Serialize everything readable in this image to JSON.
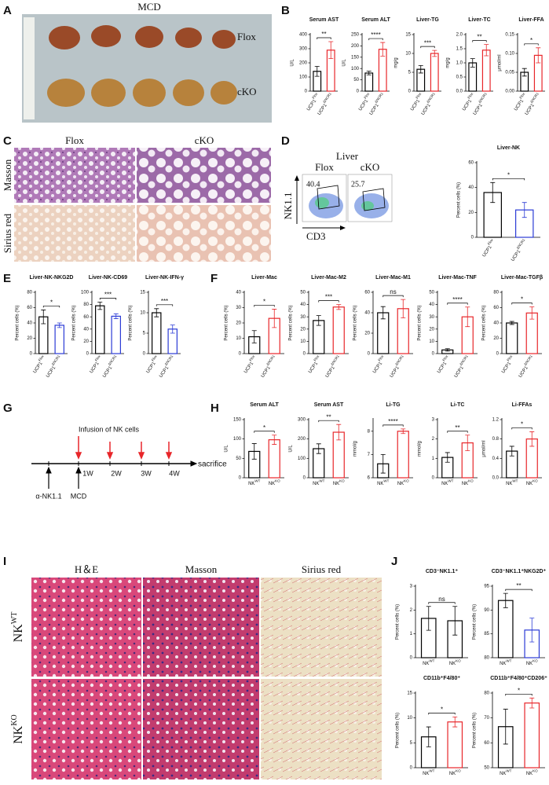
{
  "panel_letters": [
    "A",
    "B",
    "C",
    "D",
    "E",
    "F",
    "G",
    "H",
    "I",
    "J"
  ],
  "panel_A": {
    "title": "MCD",
    "rows": [
      "Flox",
      "cKO"
    ]
  },
  "panel_C": {
    "columns": [
      "Flox",
      "cKO"
    ],
    "rows": [
      "Masson",
      "Sirius red"
    ]
  },
  "panel_D": {
    "title": "Liver",
    "columns": [
      "Flox",
      "cKO"
    ],
    "gates": [
      40.4,
      25.7
    ],
    "y_axis": "NK1.1",
    "x_axis": "CD3"
  },
  "panel_G": {
    "infusion": "Infusion of NK cells",
    "weeks": [
      "1W",
      "2W",
      "3W",
      "4W"
    ],
    "end": "sacrifice",
    "antibody": "α-NK1.1",
    "diet": "MCD"
  },
  "panel_I": {
    "columns": [
      "H＆E",
      "Masson",
      "Sirius red"
    ],
    "rows": [
      {
        "base": "NK",
        "sup": "WT"
      },
      {
        "base": "NK",
        "sup": "KO"
      }
    ]
  },
  "chart_data": [
    {
      "type": "bar",
      "title": "Serum AST",
      "ylabel": "U/L",
      "categories": [
        "UCP1",
        "UCP1"
      ],
      "category_superscripts": [
        "Flox",
        "ΔNCR1"
      ],
      "values": [
        140,
        290
      ],
      "errors": [
        35,
        60
      ],
      "colors": [
        "#000000",
        "#e8262a"
      ],
      "ylim": [
        0,
        400
      ],
      "yticks": [
        0,
        100,
        200,
        300,
        400
      ],
      "significance": "**"
    },
    {
      "type": "bar",
      "title": "Serum ALT",
      "ylabel": "U/L",
      "categories": [
        "UCP1",
        "UCP1"
      ],
      "category_superscripts": [
        "Flox",
        "ΔNCR1"
      ],
      "values": [
        80,
        185
      ],
      "errors": [
        8,
        30
      ],
      "colors": [
        "#000000",
        "#e8262a"
      ],
      "ylim": [
        0,
        250
      ],
      "yticks": [
        0,
        50,
        100,
        150,
        200,
        250
      ],
      "significance": "****"
    },
    {
      "type": "bar",
      "title": "Liver-TG",
      "ylabel": "mg/g",
      "categories": [
        "UCP1",
        "UCP1"
      ],
      "category_superscripts": [
        "Flox",
        "ΔNCR1"
      ],
      "values": [
        5.8,
        10
      ],
      "errors": [
        1,
        0.8
      ],
      "colors": [
        "#000000",
        "#e8262a"
      ],
      "ylim": [
        0,
        15
      ],
      "yticks": [
        0,
        5,
        10,
        15
      ],
      "significance": "***"
    },
    {
      "type": "bar",
      "title": "Liver-TC",
      "ylabel": "mg/g",
      "categories": [
        "UCP1",
        "UCP1"
      ],
      "category_superscripts": [
        "Flox",
        "ΔNCR1"
      ],
      "values": [
        1.0,
        1.45
      ],
      "errors": [
        0.15,
        0.2
      ],
      "colors": [
        "#000000",
        "#e8262a"
      ],
      "ylim": [
        0,
        2
      ],
      "yticks": [
        {
          "value": 0,
          "label": "0.0"
        },
        0.5,
        {
          "value": 1,
          "label": "1.0"
        },
        1.5,
        {
          "value": 2,
          "label": "2.0"
        }
      ],
      "significance": "**"
    },
    {
      "type": "bar",
      "title": "Liver-FFA",
      "ylabel": "μmol/ml",
      "categories": [
        "UCP1",
        "UCP1"
      ],
      "category_superscripts": [
        "Flox",
        "ΔNCR1"
      ],
      "values": [
        0.05,
        0.095
      ],
      "errors": [
        0.01,
        0.02
      ],
      "colors": [
        "#000000",
        "#e8262a"
      ],
      "ylim": [
        0,
        0.15
      ],
      "yticks": [
        {
          "value": 0,
          "label": "0.00"
        },
        {
          "value": 0.05,
          "label": "0.05"
        },
        {
          "value": 0.1,
          "label": "0.10"
        },
        {
          "value": 0.15,
          "label": "0.15"
        }
      ],
      "significance": "*"
    },
    {
      "type": "bar",
      "title": "Liver-NK",
      "ylabel": "Percent cells (%)",
      "categories": [
        "UCP1",
        "UCP1"
      ],
      "category_superscripts": [
        "Flox",
        "ΔNCR1"
      ],
      "values": [
        36,
        22
      ],
      "errors": [
        8,
        6
      ],
      "colors": [
        "#000000",
        "#2b3bd6"
      ],
      "ylim": [
        0,
        60
      ],
      "yticks": [
        0,
        20,
        40,
        60
      ],
      "significance": "*"
    },
    {
      "type": "bar",
      "title": "Liver-NK-NKG2D",
      "ylabel": "Percent cells (%)",
      "categories": [
        "UCP1",
        "UCP1"
      ],
      "category_superscripts": [
        "Flox",
        "ΔNCR1"
      ],
      "values": [
        48,
        37
      ],
      "errors": [
        9,
        3
      ],
      "colors": [
        "#000000",
        "#2b3bd6"
      ],
      "ylim": [
        0,
        80
      ],
      "yticks": [
        0,
        20,
        40,
        60,
        80
      ],
      "significance": "*"
    },
    {
      "type": "bar",
      "title": "Liver-NK-CD69",
      "ylabel": "Percent cells (%)",
      "categories": [
        "UCP1",
        "UCP1"
      ],
      "category_superscripts": [
        "Flox",
        "ΔNCR1"
      ],
      "values": [
        78,
        61
      ],
      "errors": [
        6,
        4
      ],
      "colors": [
        "#000000",
        "#2b3bd6"
      ],
      "ylim": [
        0,
        100
      ],
      "yticks": [
        0,
        20,
        40,
        60,
        80,
        100
      ],
      "significance": "***"
    },
    {
      "type": "bar",
      "title": "Liver-NK-IFN-γ",
      "ylabel": "Percent cells (%)",
      "categories": [
        "UCP1",
        "UCP1"
      ],
      "category_superscripts": [
        "Flox",
        "ΔNCR1"
      ],
      "values": [
        10,
        6
      ],
      "errors": [
        1,
        1
      ],
      "colors": [
        "#000000",
        "#2b3bd6"
      ],
      "ylim": [
        0,
        15
      ],
      "yticks": [
        0,
        5,
        10,
        15
      ],
      "significance": "***"
    },
    {
      "type": "bar",
      "title": "Liver-Mac",
      "ylabel": "Percent cells (%)",
      "categories": [
        "UCP1",
        "UCP1"
      ],
      "category_superscripts": [
        "Flox",
        "ΔNCR1"
      ],
      "values": [
        11,
        23
      ],
      "errors": [
        4,
        6
      ],
      "colors": [
        "#000000",
        "#e8262a"
      ],
      "ylim": [
        0,
        40
      ],
      "yticks": [
        0,
        10,
        20,
        30,
        40
      ],
      "significance": "*"
    },
    {
      "type": "bar",
      "title": "Liver-Mac-M2",
      "ylabel": "Percent cells (%)",
      "categories": [
        "UCP1",
        "UCP1"
      ],
      "category_superscripts": [
        "Flox",
        "ΔNCR1"
      ],
      "values": [
        27,
        38
      ],
      "errors": [
        4,
        2
      ],
      "colors": [
        "#000000",
        "#e8262a"
      ],
      "ylim": [
        0,
        50
      ],
      "yticks": [
        0,
        10,
        20,
        30,
        40,
        50
      ],
      "significance": "***"
    },
    {
      "type": "bar",
      "title": "Liver-Mac-M1",
      "ylabel": "Percent cells (%)",
      "categories": [
        "UCP1",
        "UCP1"
      ],
      "category_superscripts": [
        "Flox",
        "ΔNCR1"
      ],
      "values": [
        40,
        44
      ],
      "errors": [
        6,
        9
      ],
      "colors": [
        "#000000",
        "#e8262a"
      ],
      "ylim": [
        0,
        60
      ],
      "yticks": [
        0,
        20,
        40,
        60
      ],
      "significance": "ns"
    },
    {
      "type": "bar",
      "title": "Liver-Mac-TNF",
      "ylabel": "Percent cells (%)",
      "categories": [
        "UCP1",
        "UCP1"
      ],
      "category_superscripts": [
        "Flox",
        "ΔNCR1"
      ],
      "values": [
        3,
        30
      ],
      "errors": [
        1,
        8
      ],
      "colors": [
        "#000000",
        "#e8262a"
      ],
      "ylim": [
        0,
        50
      ],
      "yticks": [
        0,
        10,
        20,
        30,
        40,
        50
      ],
      "significance": "****"
    },
    {
      "type": "bar",
      "title": "Liver-Mac-TGFβ",
      "ylabel": "Percent cells (%)",
      "categories": [
        "UCP1",
        "UCP1"
      ],
      "category_superscripts": [
        "Flox",
        "ΔNCR1"
      ],
      "values": [
        40,
        53
      ],
      "errors": [
        2,
        8
      ],
      "colors": [
        "#000000",
        "#e8262a"
      ],
      "ylim": [
        0,
        80
      ],
      "yticks": [
        0,
        20,
        40,
        60,
        80
      ],
      "significance": "*"
    },
    {
      "type": "bar",
      "title": "Serum ALT",
      "ylabel": "U/L",
      "categories": [
        "NK",
        "NK"
      ],
      "category_superscripts": [
        "WT",
        "KO"
      ],
      "values": [
        68,
        98
      ],
      "errors": [
        20,
        12
      ],
      "colors": [
        "#000000",
        "#e8262a"
      ],
      "ylim": [
        0,
        150
      ],
      "yticks": [
        0,
        50,
        100,
        150
      ],
      "significance": "*"
    },
    {
      "type": "bar",
      "title": "Serum AST",
      "ylabel": "U/L",
      "categories": [
        "NK",
        "NK"
      ],
      "category_superscripts": [
        "WT",
        "KO"
      ],
      "values": [
        150,
        235
      ],
      "errors": [
        25,
        40
      ],
      "colors": [
        "#000000",
        "#e8262a"
      ],
      "ylim": [
        0,
        300
      ],
      "yticks": [
        0,
        100,
        200,
        300
      ],
      "significance": "**"
    },
    {
      "type": "bar",
      "title": "Li-TG",
      "ylabel": "mmol/g",
      "categories": [
        "NK",
        "NK"
      ],
      "category_superscripts": [
        "WT",
        "KO"
      ],
      "values": [
        6.6,
        8.0
      ],
      "errors": [
        0.4,
        0.1
      ],
      "colors": [
        "#000000",
        "#e8262a"
      ],
      "ylim": [
        6,
        8.5
      ],
      "yticks": [
        6,
        7,
        8
      ],
      "significance": "****"
    },
    {
      "type": "bar",
      "title": "Li-TC",
      "ylabel": "mmol/g",
      "categories": [
        "NK",
        "NK"
      ],
      "category_superscripts": [
        "WT",
        "KO"
      ],
      "values": [
        1.05,
        1.8
      ],
      "errors": [
        0.25,
        0.4
      ],
      "colors": [
        "#000000",
        "#e8262a"
      ],
      "ylim": [
        0,
        3
      ],
      "yticks": [
        0,
        1,
        2,
        3
      ],
      "significance": "**"
    },
    {
      "type": "bar",
      "title": "Li-FFAs",
      "ylabel": "μmol/ml",
      "categories": [
        "NK",
        "NK"
      ],
      "category_superscripts": [
        "WT",
        "KO"
      ],
      "values": [
        0.55,
        0.8
      ],
      "errors": [
        0.1,
        0.15
      ],
      "colors": [
        "#000000",
        "#e8262a"
      ],
      "ylim": [
        0,
        1.2
      ],
      "yticks": [
        {
          "value": 0,
          "label": "0.0"
        },
        0.4,
        0.8,
        1.2
      ],
      "significance": "*"
    },
    {
      "type": "bar",
      "title": "CD3⁻NK1.1⁺",
      "ylabel": "Percent cells (%)",
      "categories": [
        "NK",
        "NK"
      ],
      "category_superscripts": [
        "WT",
        "KO"
      ],
      "values": [
        1.65,
        1.55
      ],
      "errors": [
        0.5,
        0.6
      ],
      "colors": [
        "#000000",
        "#000000"
      ],
      "ylim": [
        0,
        3
      ],
      "yticks": [
        0,
        1,
        2,
        3
      ],
      "significance": "ns"
    },
    {
      "type": "bar",
      "title": "CD3⁻NK1.1⁺NKG2D⁺",
      "ylabel": "Percent cells (%)",
      "categories": [
        "NK",
        "NK"
      ],
      "category_superscripts": [
        "WT",
        "KO"
      ],
      "values": [
        92,
        85.8
      ],
      "errors": [
        1.5,
        2.5
      ],
      "colors": [
        "#000000",
        "#2b3bd6"
      ],
      "ylim": [
        80,
        95
      ],
      "yticks": [
        80,
        85,
        90,
        95
      ],
      "significance": "**"
    },
    {
      "type": "bar",
      "title": "CD11b⁺F4/80⁺",
      "ylabel": "Percent cells (%)",
      "categories": [
        "NK",
        "NK"
      ],
      "category_superscripts": [
        "WT",
        "KO"
      ],
      "values": [
        6.2,
        9.2
      ],
      "errors": [
        2,
        1
      ],
      "colors": [
        "#000000",
        "#e8262a"
      ],
      "ylim": [
        0,
        15
      ],
      "yticks": [
        0,
        5,
        10,
        15
      ],
      "significance": "*"
    },
    {
      "type": "bar",
      "title": "CD11b⁺F4/80⁺CD206⁺",
      "ylabel": "Percent cells (%)",
      "categories": [
        "NK",
        "NK"
      ],
      "category_superscripts": [
        "WT",
        "KO"
      ],
      "values": [
        66.5,
        76
      ],
      "errors": [
        7,
        2
      ],
      "colors": [
        "#000000",
        "#e8262a"
      ],
      "ylim": [
        50,
        80
      ],
      "yticks": [
        50,
        60,
        70,
        80
      ],
      "significance": "*"
    }
  ]
}
